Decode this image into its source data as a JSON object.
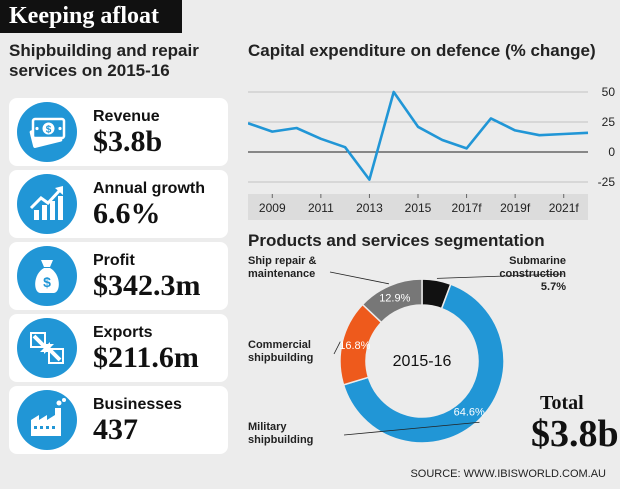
{
  "banner_title": "Keeping afloat",
  "left_title_line1": "Shipbuilding and repair",
  "left_title_line2": "services on 2015-16",
  "stats": [
    {
      "label": "Revenue",
      "value": "$3.8b",
      "icon": "money-icon"
    },
    {
      "label": "Annual growth",
      "value": "6.6%",
      "icon": "growth-chart-icon"
    },
    {
      "label": "Profit",
      "value": "$342.3m",
      "icon": "money-bag-icon"
    },
    {
      "label": "Exports",
      "value": "$211.6m",
      "icon": "exports-arrows-icon"
    },
    {
      "label": "Businesses",
      "value": "437",
      "icon": "factory-icon"
    }
  ],
  "colors": {
    "accent": "#2196d6",
    "orange": "#ee5a1c",
    "gray": "#777777",
    "black": "#111111",
    "banner": "#111111"
  },
  "chart_data": [
    {
      "type": "line",
      "title": "Capital expenditure on defence (% change)",
      "x_tick_labels": [
        "2009",
        "2011",
        "2013",
        "2015",
        "2017f",
        "2019f",
        "2021f"
      ],
      "y_tick_labels": [
        "50",
        "25",
        "0",
        "-25"
      ],
      "ylim": [
        -35,
        60
      ],
      "grid": true,
      "series": [
        {
          "x": [
            2008,
            2009,
            2010,
            2011,
            2012,
            2013,
            2014,
            2015,
            2016,
            2017,
            2018,
            2019,
            2020,
            2021,
            2022
          ],
          "values": [
            24,
            17,
            20,
            11,
            4,
            -23,
            50,
            21,
            10,
            3,
            28,
            18,
            14,
            15,
            16
          ]
        }
      ]
    },
    {
      "type": "pie",
      "title": "Products and services segmentation",
      "center_label": "2015-16",
      "slices": [
        {
          "label": "Submarine construction",
          "label_line1": "Submarine",
          "label_line2": "construction",
          "value": 5.7,
          "value_text": "5.7%",
          "color": "#111111"
        },
        {
          "label": "Military shipbuilding",
          "label_line1": "Military",
          "label_line2": "shipbuilding",
          "value": 64.6,
          "value_text": "64.6%",
          "color": "#2196d6"
        },
        {
          "label": "Commercial shipbuilding",
          "label_line1": "Commercial",
          "label_line2": "shipbuilding",
          "value": 16.8,
          "value_text": "16.8%",
          "color": "#ee5a1c"
        },
        {
          "label": "Ship repair & maintenance",
          "label_line1": "Ship repair &",
          "label_line2": "maintenance",
          "value": 12.9,
          "value_text": "12.9%",
          "color": "#777777"
        }
      ]
    }
  ],
  "total_label": "Total",
  "total_value": "$3.8b",
  "source": "SOURCE: WWW.IBISWORLD.COM.AU"
}
